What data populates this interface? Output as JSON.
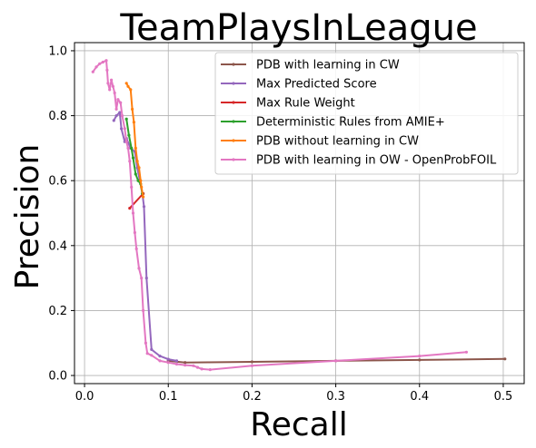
{
  "chart_data": {
    "type": "line",
    "title": "TeamPlaysInLeague",
    "xlabel": "Recall",
    "ylabel": "Precision",
    "xlim": [
      -0.012,
      0.525
    ],
    "ylim": [
      -0.025,
      1.025
    ],
    "xticks": [
      0.0,
      0.1,
      0.2,
      0.3,
      0.4,
      0.5
    ],
    "xtick_labels": [
      "0.0",
      "0.1",
      "0.2",
      "0.3",
      "0.4",
      "0.5"
    ],
    "yticks": [
      0.0,
      0.2,
      0.4,
      0.6,
      0.8,
      1.0
    ],
    "ytick_labels": [
      "0.0",
      "0.2",
      "0.4",
      "0.6",
      "0.8",
      "1.0"
    ],
    "grid": true,
    "legend_position": "upper right",
    "series": [
      {
        "name": "PDB with learning in CW",
        "color": "#8c564b",
        "points": [
          [
            0.1,
            0.045
          ],
          [
            0.12,
            0.04
          ],
          [
            0.2,
            0.042
          ],
          [
            0.3,
            0.045
          ],
          [
            0.4,
            0.048
          ],
          [
            0.502,
            0.051
          ]
        ]
      },
      {
        "name": "Max Predicted Score",
        "color": "#9467bd",
        "points": [
          [
            0.035,
            0.785
          ],
          [
            0.038,
            0.8
          ],
          [
            0.042,
            0.81
          ],
          [
            0.044,
            0.76
          ],
          [
            0.048,
            0.72
          ],
          [
            0.05,
            0.73
          ],
          [
            0.055,
            0.7
          ],
          [
            0.06,
            0.69
          ],
          [
            0.063,
            0.64
          ],
          [
            0.066,
            0.6
          ],
          [
            0.069,
            0.56
          ],
          [
            0.071,
            0.52
          ],
          [
            0.074,
            0.3
          ],
          [
            0.08,
            0.08
          ],
          [
            0.09,
            0.06
          ],
          [
            0.1,
            0.05
          ],
          [
            0.11,
            0.045
          ]
        ]
      },
      {
        "name": "Max Rule Weight",
        "color": "#d62728",
        "points": [
          [
            0.054,
            0.515
          ],
          [
            0.07,
            0.56
          ]
        ]
      },
      {
        "name": "Deterministic Rules from AMIE+",
        "color": "#2ca02c",
        "points": [
          [
            0.05,
            0.79
          ],
          [
            0.053,
            0.74
          ],
          [
            0.056,
            0.7
          ],
          [
            0.058,
            0.67
          ],
          [
            0.061,
            0.62
          ],
          [
            0.064,
            0.6
          ],
          [
            0.067,
            0.59
          ],
          [
            0.069,
            0.56
          ]
        ]
      },
      {
        "name": "PDB without learning in CW",
        "color": "#ff7f0e",
        "points": [
          [
            0.05,
            0.9
          ],
          [
            0.052,
            0.89
          ],
          [
            0.055,
            0.88
          ],
          [
            0.057,
            0.82
          ],
          [
            0.059,
            0.78
          ],
          [
            0.061,
            0.7
          ],
          [
            0.063,
            0.66
          ],
          [
            0.065,
            0.64
          ],
          [
            0.067,
            0.6
          ],
          [
            0.068,
            0.58
          ],
          [
            0.07,
            0.55
          ]
        ]
      },
      {
        "name": "PDB with learning in OW - OpenProbFOIL",
        "color": "#e377c2",
        "points": [
          [
            0.01,
            0.935
          ],
          [
            0.014,
            0.95
          ],
          [
            0.018,
            0.96
          ],
          [
            0.022,
            0.965
          ],
          [
            0.026,
            0.97
          ],
          [
            0.027,
            0.94
          ],
          [
            0.028,
            0.9
          ],
          [
            0.03,
            0.88
          ],
          [
            0.032,
            0.91
          ],
          [
            0.034,
            0.89
          ],
          [
            0.036,
            0.87
          ],
          [
            0.038,
            0.82
          ],
          [
            0.04,
            0.85
          ],
          [
            0.043,
            0.84
          ],
          [
            0.045,
            0.8
          ],
          [
            0.048,
            0.76
          ],
          [
            0.05,
            0.72
          ],
          [
            0.052,
            0.7
          ],
          [
            0.054,
            0.66
          ],
          [
            0.056,
            0.58
          ],
          [
            0.058,
            0.5
          ],
          [
            0.06,
            0.44
          ],
          [
            0.062,
            0.39
          ],
          [
            0.065,
            0.33
          ],
          [
            0.068,
            0.3
          ],
          [
            0.07,
            0.2
          ],
          [
            0.073,
            0.1
          ],
          [
            0.075,
            0.068
          ],
          [
            0.08,
            0.062
          ],
          [
            0.09,
            0.045
          ],
          [
            0.1,
            0.04
          ],
          [
            0.11,
            0.035
          ],
          [
            0.12,
            0.032
          ],
          [
            0.13,
            0.03
          ],
          [
            0.135,
            0.025
          ],
          [
            0.14,
            0.02
          ],
          [
            0.15,
            0.018
          ],
          [
            0.2,
            0.03
          ],
          [
            0.3,
            0.045
          ],
          [
            0.4,
            0.06
          ],
          [
            0.456,
            0.072
          ]
        ]
      }
    ]
  }
}
